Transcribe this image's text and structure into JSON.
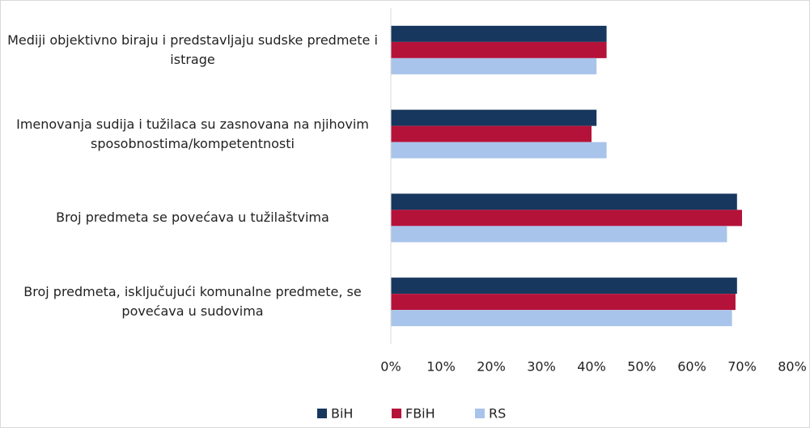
{
  "chart_data": {
    "type": "hbar",
    "categories": [
      "Mediji objektivno biraju i predstavljaju sudske predmete i istrage",
      "Imenovanja sudija i tužilaca su zasnovana na njihovim sposobnostima/kompetentnosti",
      "Broj predmeta se povećava u tužilaštvima",
      "Broj predmeta, isključujući komunalne predmete, se povećava u sudovima"
    ],
    "series": [
      {
        "name": "BiH",
        "color": "#17375e",
        "values": [
          43,
          41,
          69,
          69
        ]
      },
      {
        "name": "FBiH",
        "color": "#b5123a",
        "values": [
          43,
          40,
          70,
          68.7
        ]
      },
      {
        "name": "RS",
        "color": "#a9c4eb",
        "values": [
          41,
          43,
          67,
          68
        ]
      }
    ],
    "xlim": [
      0,
      80
    ],
    "xticks": [
      {
        "value": 0,
        "label": "0%"
      },
      {
        "value": 10,
        "label": "10%"
      },
      {
        "value": 20,
        "label": "20%"
      },
      {
        "value": 30,
        "label": "30%"
      },
      {
        "value": 40,
        "label": "40%"
      },
      {
        "value": 50,
        "label": "50%"
      },
      {
        "value": 60,
        "label": "60%"
      },
      {
        "value": 70,
        "label": "70%"
      },
      {
        "value": 80,
        "label": "80%"
      }
    ],
    "legend": "bottom"
  }
}
